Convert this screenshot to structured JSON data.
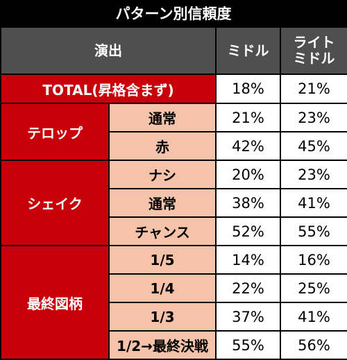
{
  "title": "パターン別信頼度",
  "header": {
    "col_effect": "演出",
    "col_midoru": "ミドル",
    "col_light_midoru": "ライト\nミドル"
  },
  "total": {
    "label": "TOTAL(昇格含まず)",
    "midoru": "18%",
    "light_midoru": "21%"
  },
  "groups": [
    {
      "name": "テロップ",
      "rows": [
        {
          "label": "通常",
          "midoru": "21%",
          "light_midoru": "23%"
        },
        {
          "label": "赤",
          "midoru": "42%",
          "light_midoru": "45%"
        }
      ]
    },
    {
      "name": "シェイク",
      "rows": [
        {
          "label": "ナシ",
          "midoru": "20%",
          "light_midoru": "23%"
        },
        {
          "label": "通常",
          "midoru": "38%",
          "light_midoru": "41%"
        },
        {
          "label": "チャンス",
          "midoru": "52%",
          "light_midoru": "55%"
        }
      ]
    },
    {
      "name": "最終図柄",
      "rows": [
        {
          "label": "1/5",
          "midoru": "14%",
          "light_midoru": "16%"
        },
        {
          "label": "1/4",
          "midoru": "22%",
          "light_midoru": "25%"
        },
        {
          "label": "1/3",
          "midoru": "37%",
          "light_midoru": "41%"
        },
        {
          "label": "1/2→最終決戦",
          "midoru": "55%",
          "light_midoru": "56%"
        }
      ]
    }
  ],
  "colors": {
    "header_bg": "#4f4f4f",
    "category_bg": "#c8000a",
    "subcategory_bg": "#f4c3a9",
    "value_bg": "#ffffff"
  }
}
